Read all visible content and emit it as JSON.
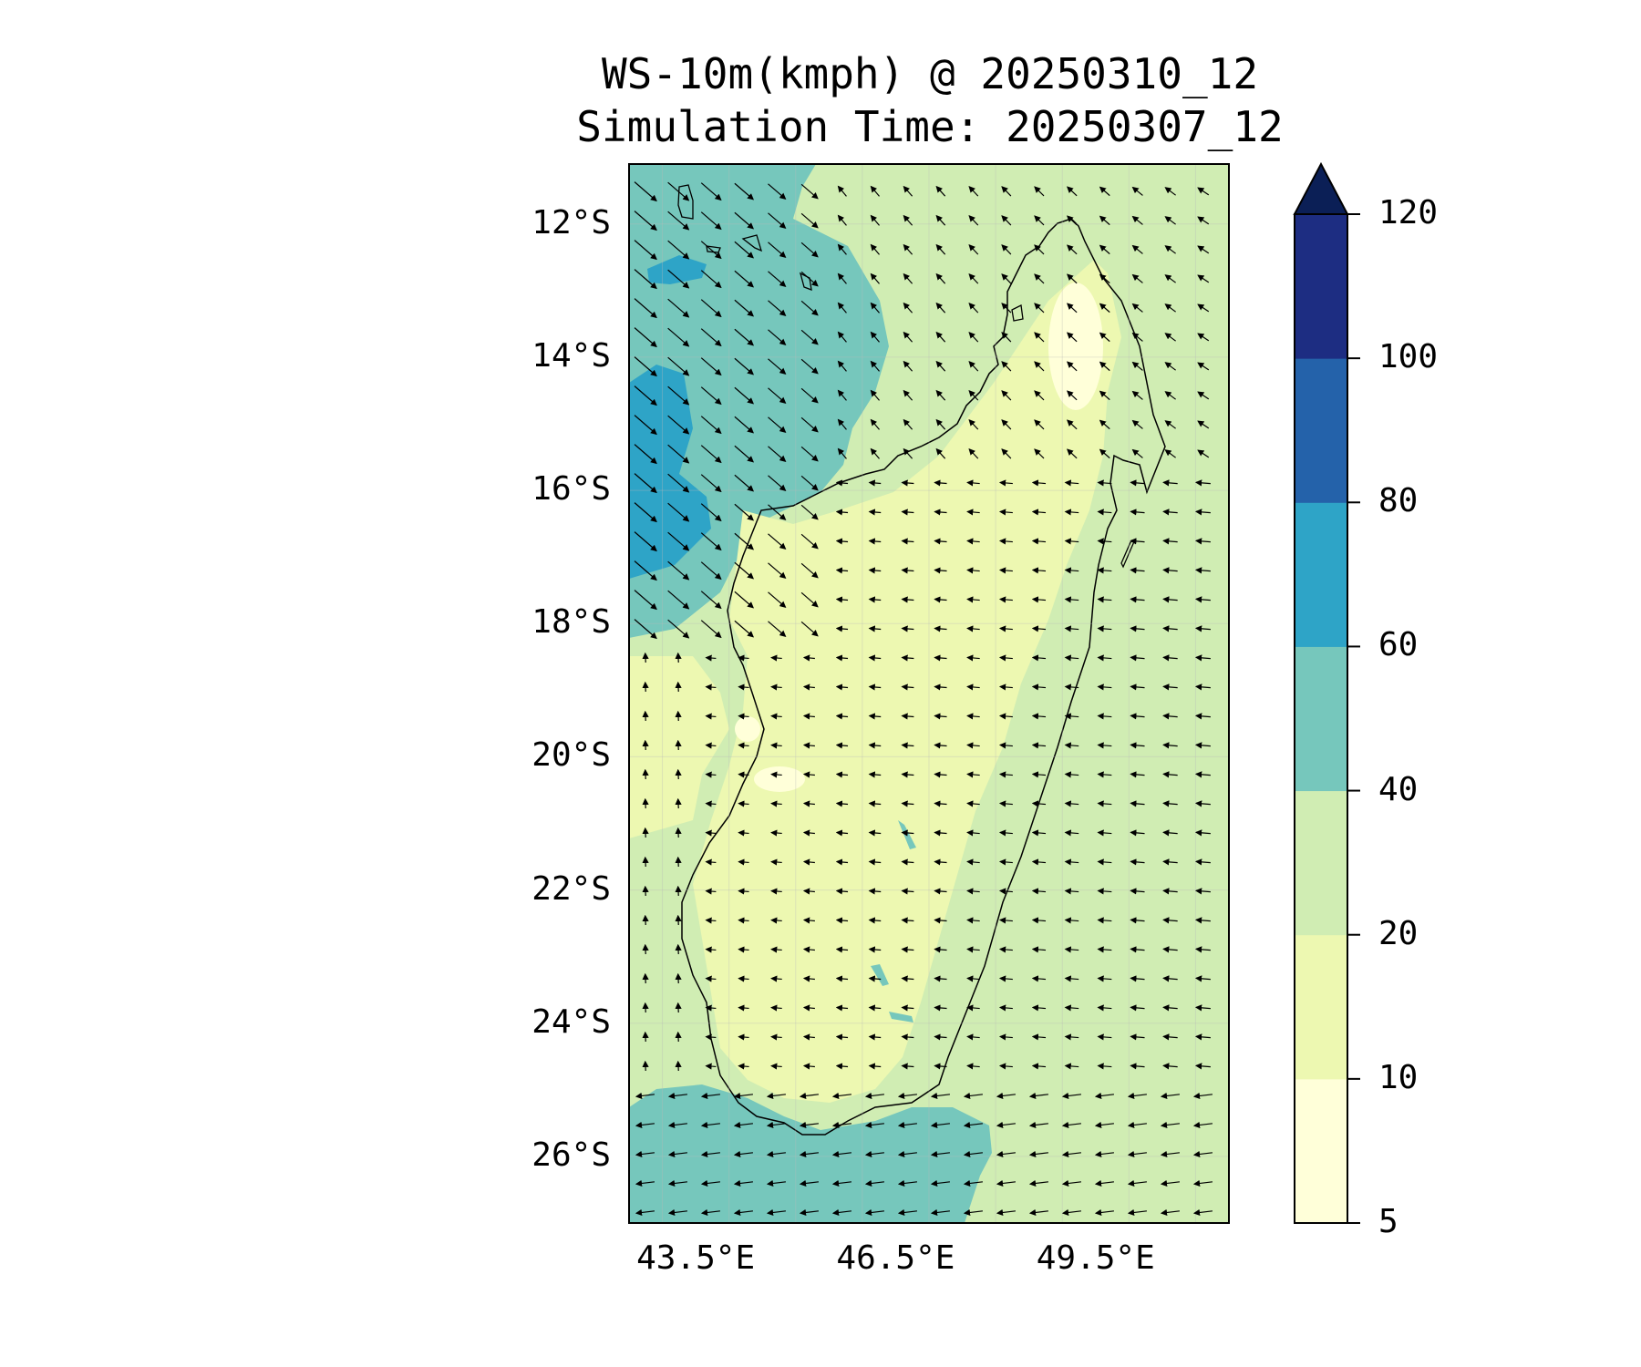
{
  "title": {
    "line1": "WS-10m(kmph) @ 20250310_12",
    "line2": "Simulation Time: 20250307_12"
  },
  "map": {
    "lat_range": [
      -27,
      -11.1
    ],
    "lon_range": [
      42.5,
      51.5
    ],
    "lat_ticks": [
      {
        "value": -12,
        "label": "12°S"
      },
      {
        "value": -14,
        "label": "14°S"
      },
      {
        "value": -16,
        "label": "16°S"
      },
      {
        "value": -18,
        "label": "18°S"
      },
      {
        "value": -20,
        "label": "20°S"
      },
      {
        "value": -22,
        "label": "22°S"
      },
      {
        "value": -24,
        "label": "24°S"
      },
      {
        "value": -26,
        "label": "26°S"
      }
    ],
    "lon_ticks": [
      {
        "value": 43.5,
        "label": "43.5°E"
      },
      {
        "value": 46.5,
        "label": "46.5°E"
      },
      {
        "value": 49.5,
        "label": "49.5°E"
      }
    ]
  },
  "colorbar": {
    "levels": [
      {
        "label": "5",
        "value": 5,
        "color": "#ffffd9"
      },
      {
        "label": "10",
        "value": 10,
        "color": "#edf8b1"
      },
      {
        "label": "20",
        "value": 20,
        "color": "#d0edb3"
      },
      {
        "label": "40",
        "value": 40,
        "color": "#76c7bc"
      },
      {
        "label": "60",
        "value": 60,
        "color": "#2ea4c7"
      },
      {
        "label": "80",
        "value": 80,
        "color": "#2462aa"
      },
      {
        "label": "100",
        "value": 100,
        "color": "#1d2d82"
      },
      {
        "label": "120",
        "value": 120,
        "color": "#0b1f56"
      }
    ],
    "extend": "max"
  },
  "colors": {
    "calm": "#ffffd9",
    "light": "#edf8b1",
    "moderate": "#d0edb3",
    "fresh": "#76c7bc",
    "strong": "#2ea4c7"
  }
}
